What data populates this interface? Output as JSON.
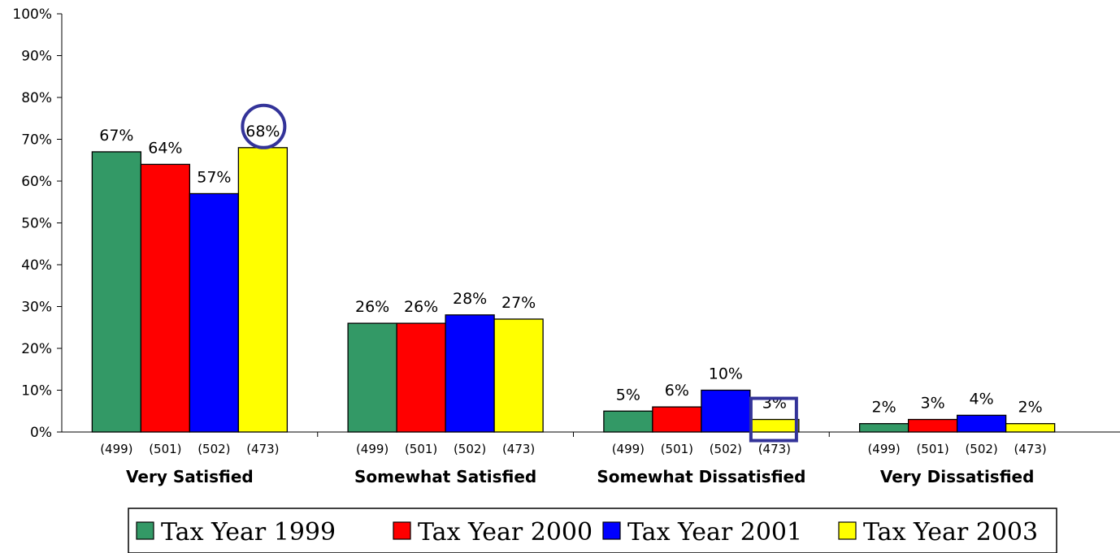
{
  "chart_data": {
    "type": "bar",
    "categories": [
      "Very Satisfied",
      "Somewhat Satisfied",
      "Somewhat Dissatisfied",
      "Very Dissatisfied"
    ],
    "series": [
      {
        "name": "Tax Year 1999",
        "color": "#339966",
        "values": [
          67,
          26,
          5,
          2
        ],
        "labels": [
          "67%",
          "26%",
          "5%",
          "2%"
        ],
        "n": [
          "(499)",
          "(499)",
          "(499)",
          "(499)"
        ]
      },
      {
        "name": "Tax Year 2000",
        "color": "#ff0000",
        "values": [
          64,
          26,
          6,
          3
        ],
        "labels": [
          "64%",
          "26%",
          "6%",
          "3%"
        ],
        "n": [
          "(501)",
          "(501)",
          "(501)",
          "(501)"
        ]
      },
      {
        "name": "Tax Year 2001",
        "color": "#0000ff",
        "values": [
          57,
          28,
          10,
          4
        ],
        "labels": [
          "57%",
          "28%",
          "10%",
          "4%"
        ],
        "n": [
          "(502)",
          "(502)",
          "(502)",
          "(502)"
        ]
      },
      {
        "name": "Tax Year 2003",
        "color": "#ffff00",
        "values": [
          68,
          27,
          3,
          2
        ],
        "labels": [
          "68%",
          "27%",
          "3%",
          "2%"
        ],
        "n": [
          "(473)",
          "(473)",
          "(473)",
          "(473)"
        ]
      }
    ],
    "y_ticks": [
      "0%",
      "10%",
      "20%",
      "30%",
      "40%",
      "50%",
      "60%",
      "70%",
      "80%",
      "90%",
      "100%"
    ],
    "ylim": [
      0,
      100
    ],
    "legend_position": "bottom",
    "highlights": [
      {
        "shape": "circle",
        "series": "Tax Year 2003",
        "category": "Very Satisfied",
        "color": "#333399"
      },
      {
        "shape": "square",
        "series": "Tax Year 2003",
        "category": "Somewhat Dissatisfied",
        "color": "#333399"
      }
    ]
  }
}
